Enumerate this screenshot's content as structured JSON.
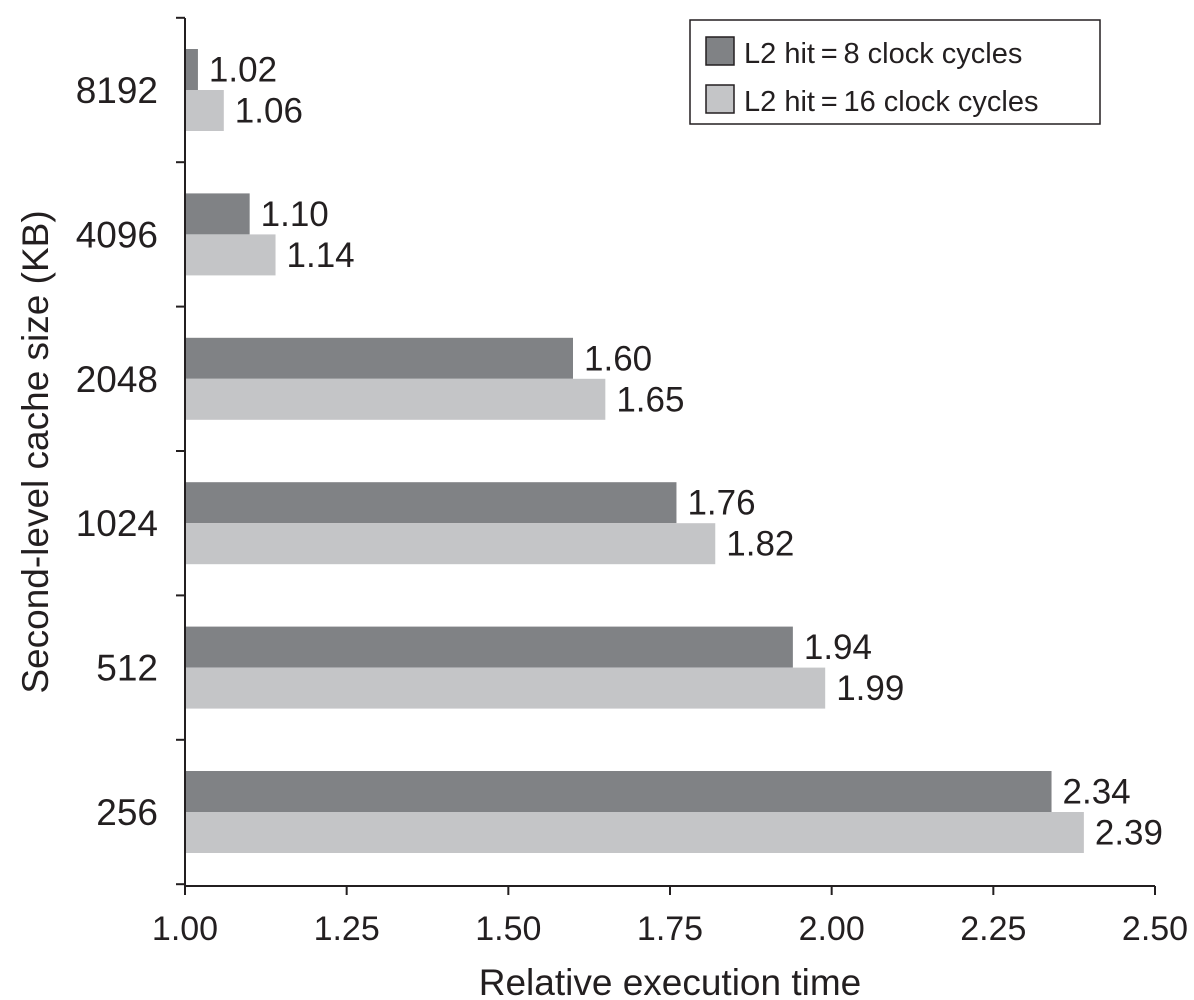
{
  "chart_data": {
    "type": "bar",
    "orientation": "horizontal",
    "categories": [
      "8192",
      "4096",
      "2048",
      "1024",
      "512",
      "256"
    ],
    "series": [
      {
        "name": "L2 hit = 8 clock cycles",
        "values": [
          1.02,
          1.1,
          1.6,
          1.76,
          1.94,
          2.34
        ],
        "labels": [
          "1.02",
          "1.10",
          "1.60",
          "1.76",
          "1.94",
          "2.34"
        ],
        "color": "#808285"
      },
      {
        "name": "L2 hit = 16 clock cycles",
        "values": [
          1.06,
          1.14,
          1.65,
          1.82,
          1.99,
          2.39
        ],
        "labels": [
          "1.06",
          "1.14",
          "1.65",
          "1.82",
          "1.99",
          "2.39"
        ],
        "color": "#c4c5c7"
      }
    ],
    "xlabel": "Relative execution time",
    "ylabel": "Second-level cache size (KB)",
    "xlim": [
      1.0,
      2.5
    ],
    "xticks": [
      "1.00",
      "1.25",
      "1.50",
      "1.75",
      "2.00",
      "2.25",
      "2.50"
    ],
    "grid": false,
    "legend_position": "top-right",
    "axis_color": "#231f20"
  }
}
